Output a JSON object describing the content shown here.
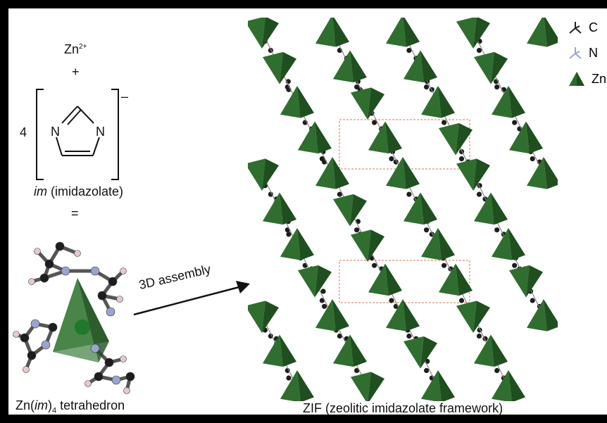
{
  "reactants": {
    "zn_ion_base": "Zn",
    "zn_ion_charge": "2+",
    "plus": "+",
    "coefficient": "4",
    "ring_atom_left": "N",
    "ring_atom_right": "N",
    "ligand_charge": "–",
    "ligand_label_italic": "im",
    "ligand_label_rest": " (imidazolate)",
    "equals": "="
  },
  "tetrahedron": {
    "label_base": "Zn(",
    "label_italic": "im",
    "label_close": ")",
    "label_sub": "4",
    "label_tail": " tetrahedron"
  },
  "arrow": {
    "label": "3D assembly"
  },
  "framework": {
    "caption": "ZIF (zeolitic imidazolate framework)"
  },
  "legend": {
    "items": [
      {
        "label": "C",
        "icon": "carbon-atom-icon",
        "color": "#222222"
      },
      {
        "label": "N",
        "icon": "nitrogen-atom-icon",
        "color": "#9aa4d0"
      },
      {
        "label": "Zn",
        "icon": "zinc-tetrahedron-icon",
        "color": "#2d6b2d"
      }
    ]
  },
  "colors": {
    "carbon": "#1e1e1e",
    "nitrogen": "#9aa4d0",
    "zinc_tetrahedron": "#2f6e2f",
    "zinc_tetrahedron_dark": "#1f4f1f",
    "hydrogen": "#e8c9c9"
  }
}
